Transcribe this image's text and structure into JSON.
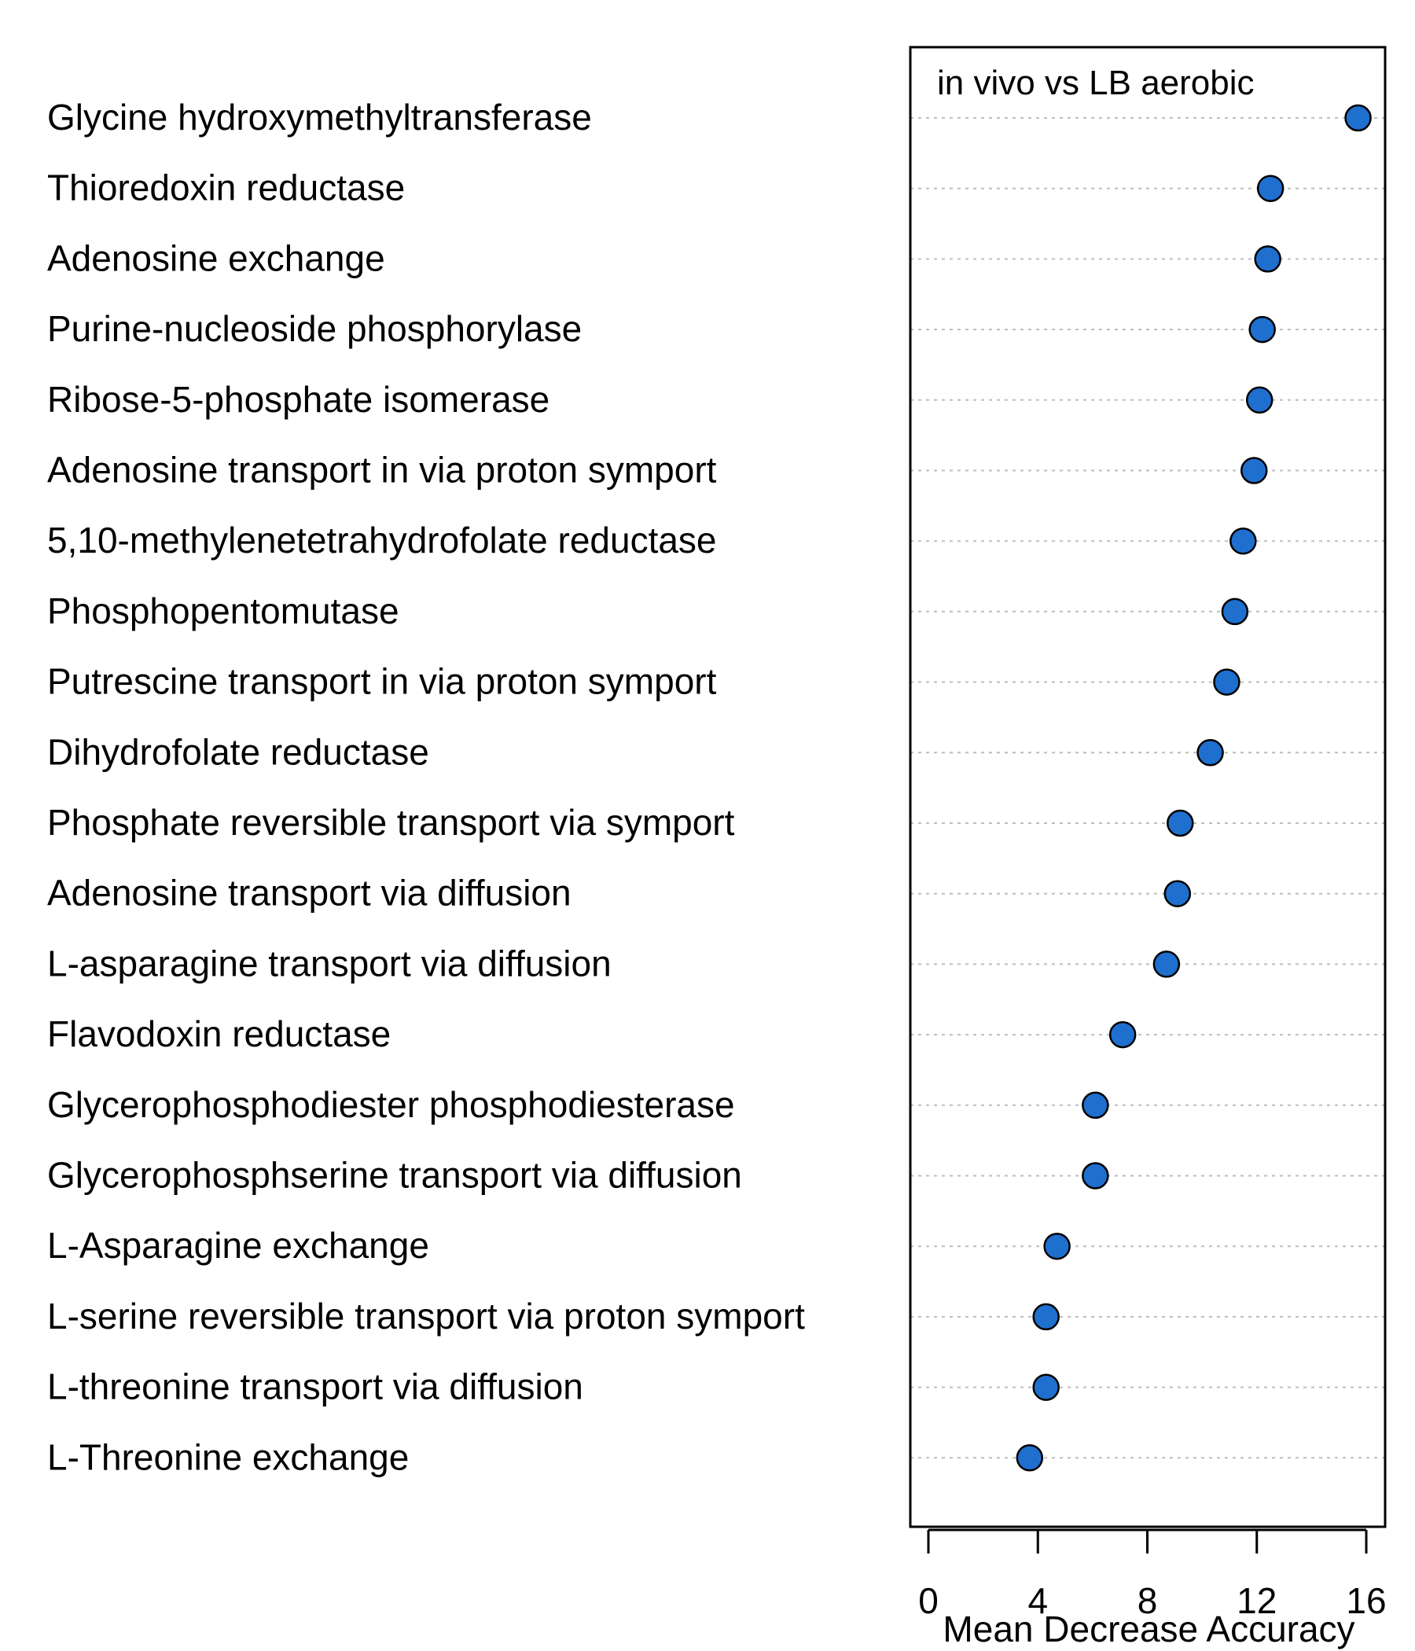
{
  "chart_data": {
    "type": "scatter",
    "subtype": "dotchart",
    "title": "in vivo vs LB aerobic",
    "xlabel": "Mean Decrease Accuracy",
    "ylabel": "",
    "xlim": [
      0,
      16
    ],
    "xticks": [
      0,
      4,
      8,
      12,
      16
    ],
    "grid": "dotted horizontal guide per row",
    "legend": "none",
    "categories": [
      "Glycine hydroxymethyltransferase",
      "Thioredoxin reductase",
      "Adenosine exchange",
      "Purine-nucleoside phosphorylase",
      "Ribose-5-phosphate isomerase",
      "Adenosine transport in via proton symport",
      "5,10-methylenetetrahydrofolate reductase",
      "Phosphopentomutase",
      "Putrescine transport in via proton symport",
      "Dihydrofolate reductase",
      "Phosphate reversible transport via symport",
      "Adenosine transport via diffusion",
      "L-asparagine transport via diffusion",
      "Flavodoxin reductase",
      "Glycerophosphodiester phosphodiesterase",
      "Glycerophosphserine transport via diffusion",
      "L-Asparagine exchange",
      "L-serine reversible transport via proton symport",
      "L-threonine transport via diffusion",
      "L-Threonine exchange"
    ],
    "values": [
      15.7,
      12.5,
      12.4,
      12.2,
      12.1,
      11.9,
      11.5,
      11.2,
      10.9,
      10.3,
      9.2,
      9.1,
      8.7,
      7.1,
      6.1,
      6.1,
      4.7,
      4.3,
      4.3,
      3.7
    ],
    "colors": {
      "point_fill": "#1f6fcf",
      "point_stroke": "#000000",
      "guide": "#bdbdbd",
      "frame": "#000000"
    }
  }
}
